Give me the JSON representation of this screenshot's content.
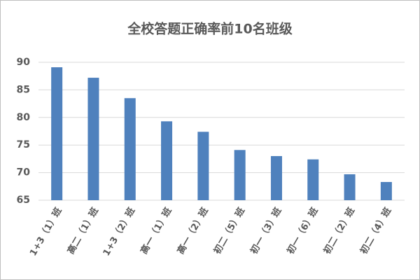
{
  "chart_data": {
    "type": "bar",
    "title": "全校答题正确率前10名班级",
    "categories": [
      "1+3（1）班",
      "高二（1）班",
      "1+3（2）班",
      "高一（1）班",
      "高一（2）班",
      "初二（5）班",
      "初一（3）班",
      "初一（6）班",
      "初二（2）班",
      "初二（4）班"
    ],
    "values": [
      89.1,
      87.2,
      83.5,
      79.3,
      77.4,
      74.1,
      73.0,
      72.4,
      69.7,
      68.3
    ],
    "color": "#4f81bd",
    "ylim": [
      65,
      90
    ],
    "yticks": [
      65,
      70,
      75,
      80,
      85,
      90
    ],
    "grid": true
  }
}
